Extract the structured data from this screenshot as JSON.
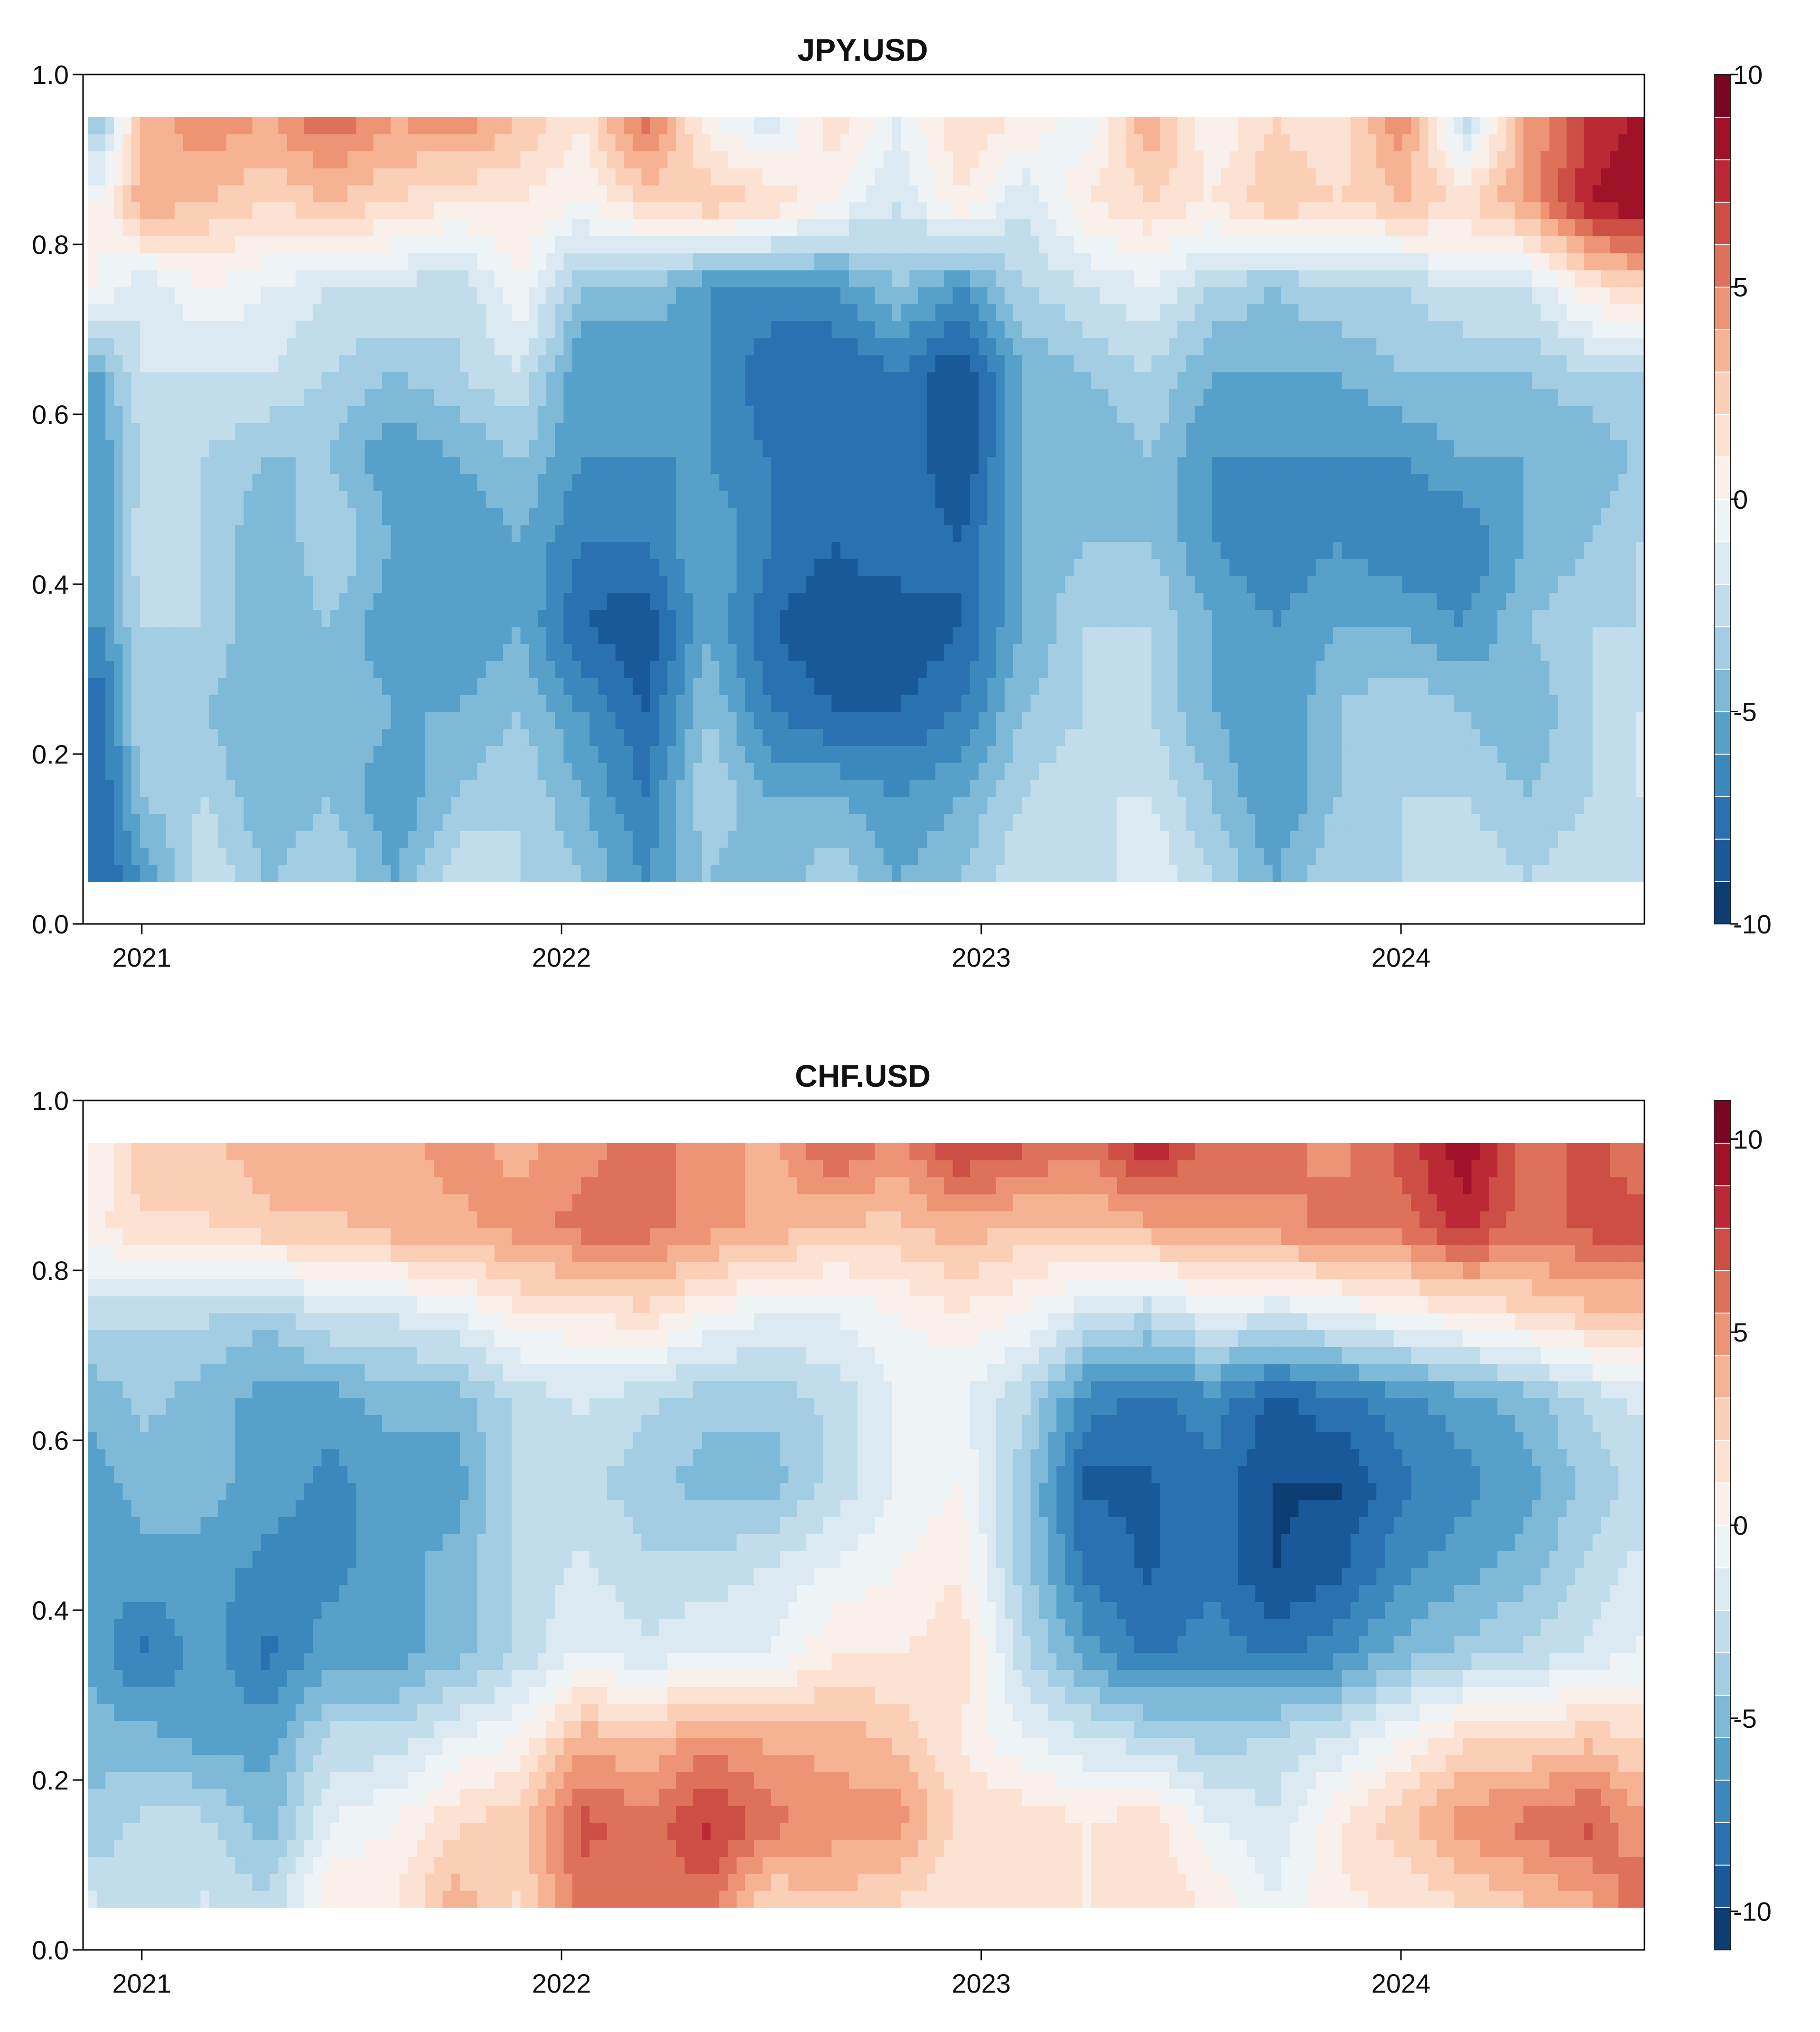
{
  "chart_data": [
    {
      "type": "heatmap",
      "title": "JPY.USD",
      "xlabel": "",
      "ylabel": "",
      "xlim": [
        2020.86,
        2024.58
      ],
      "ylim": [
        0.0,
        1.0
      ],
      "data_y_range": [
        0.05,
        0.95
      ],
      "x_ticks": [
        2021,
        2022,
        2023,
        2024
      ],
      "x_tick_labels": [
        "2021",
        "2022",
        "2023",
        "2024"
      ],
      "y_ticks": [
        0.0,
        0.2,
        0.4,
        0.6,
        0.8,
        1.0
      ],
      "y_tick_labels": [
        "0.0",
        "0.2",
        "0.4",
        "0.6",
        "0.8",
        "1.0"
      ],
      "colorbar": {
        "range": [
          -10,
          10
        ],
        "ticks": [
          10,
          5,
          0,
          -5,
          -10
        ],
        "tick_labels": [
          "10",
          "5",
          "0",
          "-5",
          "-10"
        ],
        "low_color": "#053061",
        "mid_color": "#f7f7f7",
        "high_color": "#67001f"
      },
      "x": [
        2020.9,
        2021.0,
        2021.15,
        2021.3,
        2021.45,
        2021.6,
        2021.75,
        2021.9,
        2022.05,
        2022.2,
        2022.35,
        2022.5,
        2022.65,
        2022.8,
        2022.95,
        2023.1,
        2023.25,
        2023.4,
        2023.55,
        2023.7,
        2023.85,
        2024.0,
        2024.15,
        2024.3,
        2024.45,
        2024.55
      ],
      "y": [
        0.05,
        0.15,
        0.25,
        0.35,
        0.45,
        0.55,
        0.65,
        0.75,
        0.85,
        0.95
      ],
      "z": [
        [
          -8,
          -6,
          -2,
          -4,
          -3,
          -5,
          -2,
          -3,
          -4,
          -6,
          -4,
          -5,
          -3,
          -5,
          -4,
          -2,
          -3,
          -1,
          -3,
          -5,
          -3,
          -3,
          -2,
          -3,
          -2,
          -3
        ],
        [
          -8,
          -4,
          -3,
          -5,
          -4,
          -6,
          -4,
          -3,
          -5,
          -7,
          -3,
          -5,
          -5,
          -6,
          -5,
          -3,
          -2,
          -2,
          -4,
          -6,
          -4,
          -3,
          -3,
          -4,
          -3,
          -2
        ],
        [
          -8,
          -3,
          -4,
          -5,
          -4,
          -5,
          -5,
          -4,
          -6,
          -8,
          -4,
          -7,
          -8,
          -8,
          -7,
          -4,
          -3,
          -3,
          -5,
          -6,
          -4,
          -3,
          -4,
          -5,
          -3,
          -2
        ],
        [
          -6,
          -3,
          -3,
          -5,
          -4,
          -6,
          -6,
          -5,
          -8,
          -9,
          -5,
          -8,
          -9,
          -9,
          -8,
          -5,
          -3,
          -3,
          -5,
          -6,
          -5,
          -5,
          -6,
          -4,
          -3,
          -3
        ],
        [
          -6,
          -2,
          -3,
          -5,
          -3,
          -5,
          -6,
          -5,
          -7,
          -7,
          -5,
          -7,
          -8,
          -7,
          -8,
          -5,
          -4,
          -4,
          -6,
          -7,
          -6,
          -7,
          -7,
          -5,
          -4,
          -3
        ],
        [
          -6,
          -3,
          -3,
          -4,
          -4,
          -6,
          -5,
          -4,
          -6,
          -6,
          -6,
          -7,
          -7,
          -7,
          -9,
          -5,
          -5,
          -4,
          -6,
          -6,
          -6,
          -6,
          -5,
          -5,
          -5,
          -4
        ],
        [
          -5,
          -2,
          -2,
          -2,
          -3,
          -4,
          -3,
          -2,
          -6,
          -6,
          -6,
          -8,
          -8,
          -7,
          -9,
          -5,
          -4,
          -3,
          -5,
          -5,
          -5,
          -4,
          -4,
          -4,
          -3,
          -3
        ],
        [
          0,
          -2,
          0,
          -1,
          -2,
          -2,
          -3,
          0,
          -4,
          -4,
          -6,
          -6,
          -6,
          -4,
          -6,
          -3,
          -2,
          -1,
          -3,
          -4,
          -3,
          -3,
          -2,
          -2,
          1,
          2
        ],
        [
          0,
          4,
          3,
          2,
          3,
          2,
          1,
          1,
          0,
          2,
          3,
          2,
          0,
          -2,
          1,
          -2,
          1,
          2,
          1,
          3,
          2,
          3,
          2,
          4,
          8,
          9
        ],
        [
          -4,
          3,
          5,
          4,
          6,
          4,
          5,
          3,
          1,
          6,
          0,
          -2,
          2,
          -1,
          2,
          1,
          -1,
          4,
          0,
          2,
          1,
          5,
          -3,
          4,
          7,
          8
        ]
      ]
    },
    {
      "type": "heatmap",
      "title": "CHF.USD",
      "xlabel": "",
      "ylabel": "",
      "xlim": [
        2020.86,
        2024.58
      ],
      "ylim": [
        0.0,
        1.0
      ],
      "data_y_range": [
        0.05,
        0.95
      ],
      "x_ticks": [
        2021,
        2022,
        2023,
        2024
      ],
      "x_tick_labels": [
        "2021",
        "2022",
        "2023",
        "2024"
      ],
      "y_ticks": [
        0.0,
        0.2,
        0.4,
        0.6,
        0.8,
        1.0
      ],
      "y_tick_labels": [
        "0.0",
        "0.2",
        "0.4",
        "0.6",
        "0.8",
        "1.0"
      ],
      "colorbar": {
        "range": [
          -11,
          11
        ],
        "ticks": [
          10,
          5,
          0,
          -5,
          -10
        ],
        "tick_labels": [
          "10",
          "5",
          "0",
          "-5",
          "-10"
        ],
        "low_color": "#053061",
        "mid_color": "#f7f7f7",
        "high_color": "#67001f"
      },
      "x": [
        2020.9,
        2021.0,
        2021.15,
        2021.3,
        2021.45,
        2021.6,
        2021.75,
        2021.9,
        2022.05,
        2022.2,
        2022.35,
        2022.5,
        2022.65,
        2022.8,
        2022.95,
        2023.1,
        2023.25,
        2023.4,
        2023.55,
        2023.7,
        2023.85,
        2024.0,
        2024.15,
        2024.3,
        2024.45,
        2024.55
      ],
      "y": [
        0.05,
        0.15,
        0.25,
        0.35,
        0.45,
        0.55,
        0.65,
        0.75,
        0.85,
        0.95
      ],
      "z": [
        [
          -2,
          -3,
          -2,
          -3,
          1,
          1,
          4,
          2,
          6,
          6,
          6,
          2,
          3,
          2,
          1,
          2,
          1,
          2,
          1,
          -1,
          1,
          1,
          2,
          3,
          4,
          6
        ],
        [
          -4,
          -3,
          -3,
          -5,
          -1,
          0,
          2,
          3,
          7,
          6,
          8,
          6,
          5,
          5,
          2,
          2,
          1,
          2,
          -1,
          -2,
          1,
          3,
          5,
          6,
          7,
          5
        ],
        [
          -5,
          -5,
          -6,
          -6,
          -3,
          -3,
          -1,
          0,
          4,
          3,
          5,
          4,
          4,
          3,
          1,
          -1,
          -2,
          -3,
          -4,
          -3,
          -2,
          0,
          2,
          2,
          3,
          2
        ],
        [
          -6,
          -8,
          -6,
          -8,
          -6,
          -6,
          -5,
          -3,
          -1,
          -2,
          -1,
          -1,
          1,
          1,
          2,
          -3,
          -6,
          -8,
          -7,
          -8,
          -7,
          -5,
          -4,
          -3,
          -2,
          -1
        ],
        [
          -6,
          -6,
          -6,
          -7,
          -7,
          -6,
          -5,
          -3,
          -2,
          -3,
          -3,
          -2,
          -1,
          0,
          1,
          -4,
          -8,
          -9,
          -8,
          -10,
          -9,
          -7,
          -6,
          -5,
          -3,
          -2
        ],
        [
          -6,
          -5,
          -5,
          -6,
          -7,
          -6,
          -6,
          -3,
          -3,
          -4,
          -5,
          -5,
          -3,
          -1,
          0,
          -4,
          -9,
          -9,
          -8,
          -10,
          -10,
          -8,
          -7,
          -6,
          -4,
          -3
        ],
        [
          -5,
          -4,
          -5,
          -6,
          -6,
          -5,
          -5,
          -3,
          -2,
          -3,
          -4,
          -4,
          -3,
          -1,
          -1,
          -3,
          -7,
          -8,
          -7,
          -9,
          -8,
          -7,
          -6,
          -5,
          -3,
          -2
        ],
        [
          -3,
          -3,
          -3,
          -4,
          -2,
          -2,
          -1,
          1,
          1,
          2,
          0,
          -1,
          -1,
          0,
          1,
          0,
          -2,
          -3,
          -1,
          -2,
          -1,
          0,
          1,
          2,
          3,
          3
        ],
        [
          1,
          2,
          2,
          3,
          3,
          4,
          4,
          5,
          6,
          6,
          5,
          4,
          3,
          3,
          4,
          3,
          3,
          4,
          5,
          5,
          6,
          6,
          8,
          6,
          7,
          7
        ],
        [
          0,
          3,
          3,
          4,
          4,
          4,
          5,
          4,
          5,
          6,
          5,
          4,
          7,
          5,
          8,
          7,
          6,
          9,
          6,
          6,
          5,
          7,
          10,
          6,
          7,
          6
        ]
      ]
    }
  ]
}
